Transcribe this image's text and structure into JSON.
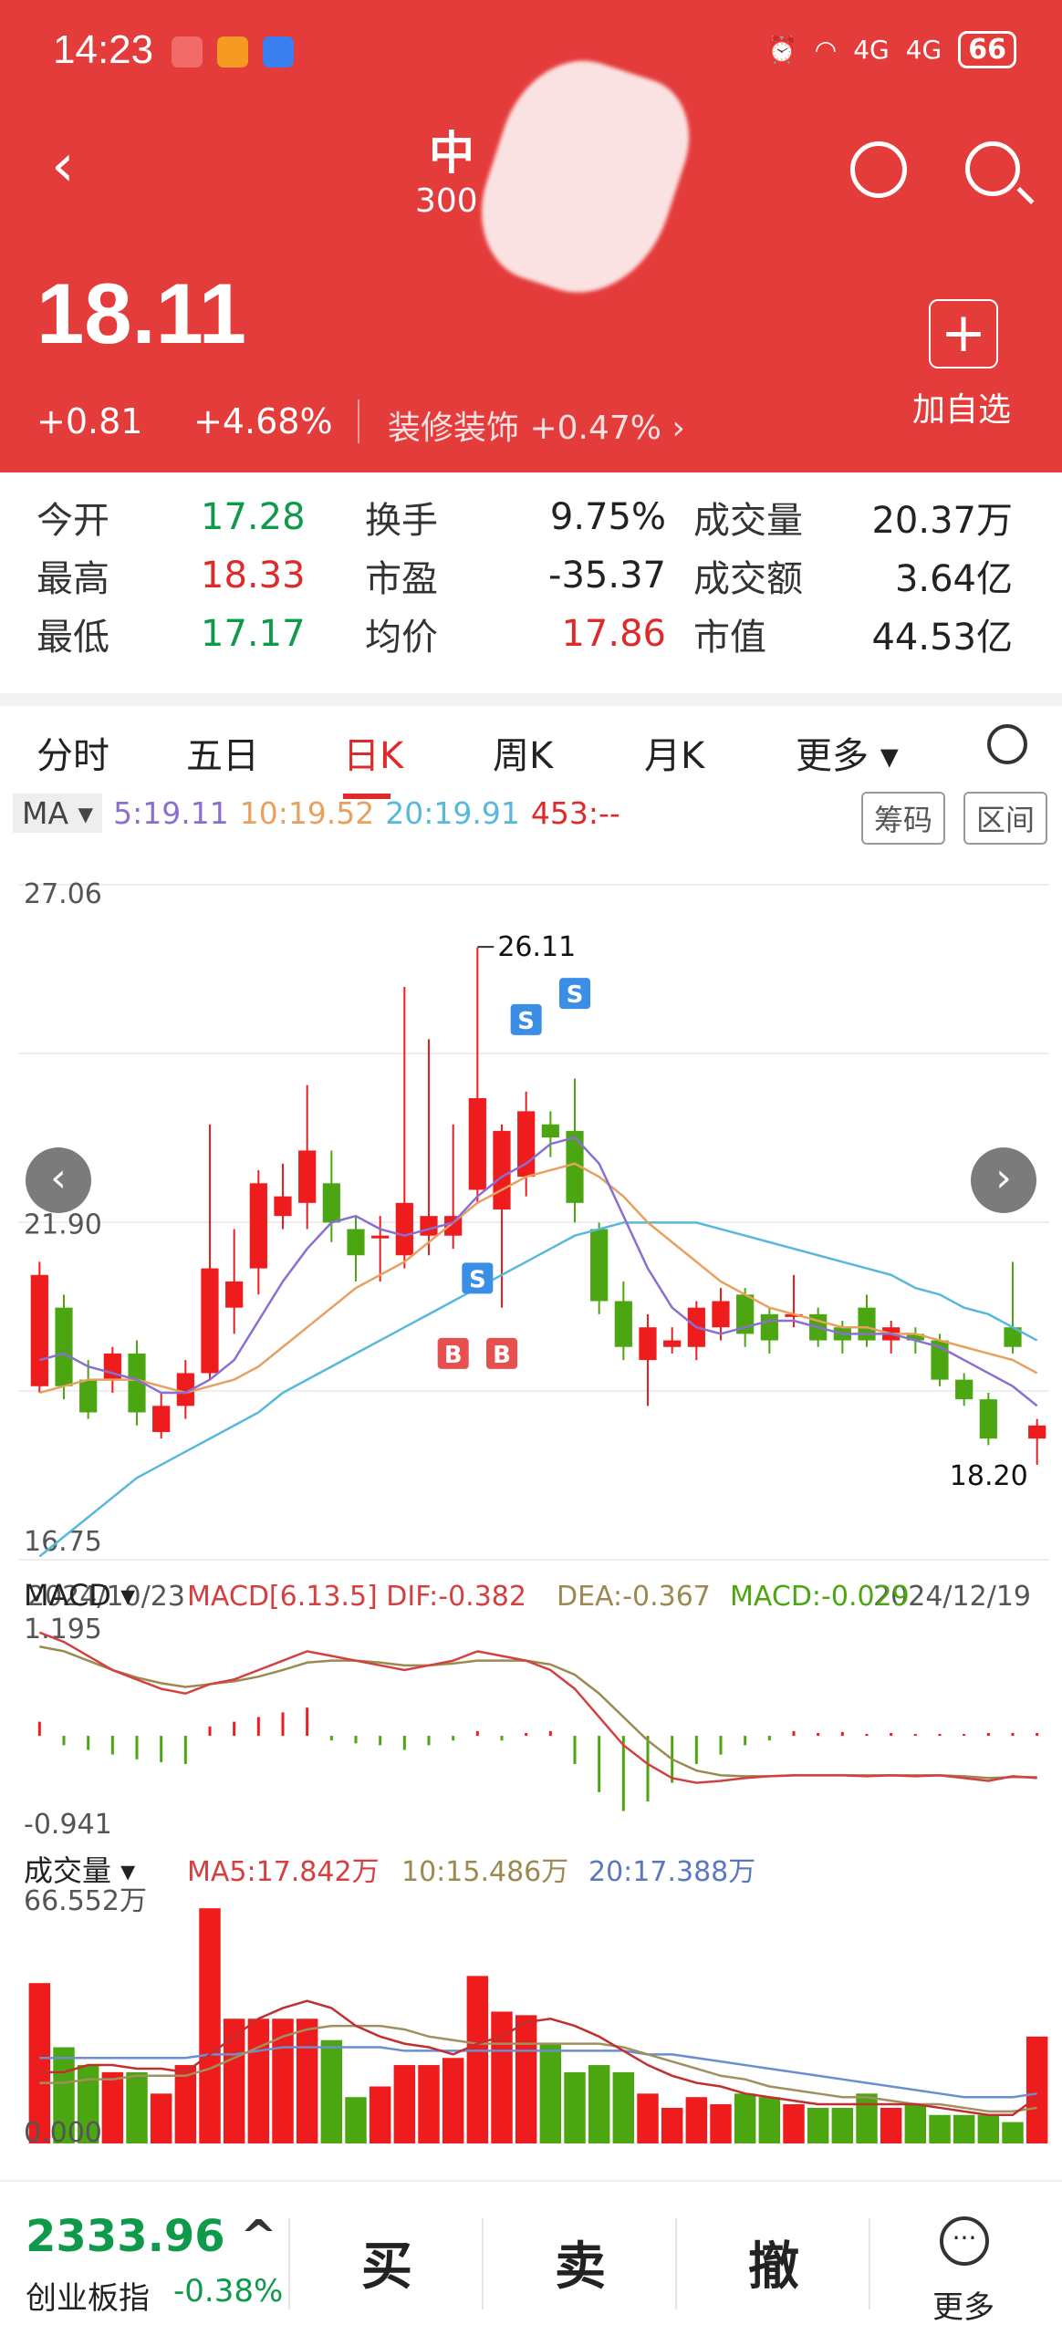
{
  "status": {
    "time": "14:23",
    "battery": "66",
    "net1": "4G",
    "net2": "4G"
  },
  "header": {
    "back": "‹",
    "name_visible": "中",
    "code_visible": "300",
    "price": "18.11",
    "change": "+0.81",
    "change_pct": "+4.68%",
    "sector": "装修装饰",
    "sector_pct": "+0.47%",
    "sector_arrow": "›",
    "add_label": "加自选",
    "add_icon": "+"
  },
  "stats": [
    {
      "k1": "今开",
      "v1": "17.28",
      "c1": "grn",
      "k2": "换手",
      "v2": "9.75%",
      "c2": "",
      "k3": "成交量",
      "v3": "20.37万"
    },
    {
      "k1": "最高",
      "v1": "18.33",
      "c1": "red",
      "k2": "市盈",
      "v2": "-35.37",
      "c2": "",
      "k3": "成交额",
      "v3": "3.64亿"
    },
    {
      "k1": "最低",
      "v1": "17.17",
      "c1": "grn",
      "k2": "均价",
      "v2": "17.86",
      "c2": "red",
      "k3": "市值",
      "v3": "44.53亿"
    }
  ],
  "tabs": [
    "分时",
    "五日",
    "日K",
    "周K",
    "月K",
    "更多 ▾"
  ],
  "active_tab": "日K",
  "ma_legend": {
    "label": "MA",
    "ma5": "5:19.11",
    "ma10": "10:19.52",
    "ma20": "20:19.91",
    "ma453": "453:--",
    "btn1": "筹码",
    "btn2": "区间"
  },
  "chart_data": {
    "type": "candlestick",
    "ylim": [
      16.75,
      27.06
    ],
    "ytick_labels": [
      "27.06",
      "21.90",
      "16.75"
    ],
    "date_start": "2024/10/23",
    "date_end": "2024/12/19",
    "high_label": "26.11",
    "low_label": "18.20",
    "markers": [
      "S",
      "S",
      "S",
      "B",
      "B"
    ],
    "candles": [
      {
        "o": 19.4,
        "c": 21.1,
        "h": 21.3,
        "l": 19.3
      },
      {
        "o": 20.6,
        "c": 19.4,
        "h": 20.8,
        "l": 19.2
      },
      {
        "o": 19.5,
        "c": 19.0,
        "h": 19.8,
        "l": 18.9
      },
      {
        "o": 19.5,
        "c": 19.9,
        "h": 20.0,
        "l": 19.3
      },
      {
        "o": 19.9,
        "c": 19.0,
        "h": 20.1,
        "l": 18.8
      },
      {
        "o": 18.7,
        "c": 19.1,
        "h": 19.3,
        "l": 18.6
      },
      {
        "o": 19.1,
        "c": 19.6,
        "h": 19.8,
        "l": 18.9
      },
      {
        "o": 19.6,
        "c": 21.2,
        "h": 23.4,
        "l": 19.5
      },
      {
        "o": 20.6,
        "c": 21.0,
        "h": 21.8,
        "l": 20.2
      },
      {
        "o": 21.2,
        "c": 22.5,
        "h": 22.7,
        "l": 20.8
      },
      {
        "o": 22.0,
        "c": 22.3,
        "h": 22.8,
        "l": 21.8
      },
      {
        "o": 22.2,
        "c": 23.0,
        "h": 24.0,
        "l": 21.8
      },
      {
        "o": 22.5,
        "c": 21.9,
        "h": 23.0,
        "l": 21.6
      },
      {
        "o": 21.8,
        "c": 21.4,
        "h": 22.0,
        "l": 21.0
      },
      {
        "o": 21.7,
        "c": 21.7,
        "h": 22.0,
        "l": 21.0
      },
      {
        "o": 21.4,
        "c": 22.2,
        "h": 25.5,
        "l": 21.2
      },
      {
        "o": 21.7,
        "c": 22.0,
        "h": 24.7,
        "l": 21.4
      },
      {
        "o": 21.7,
        "c": 22.0,
        "h": 23.4,
        "l": 21.5
      },
      {
        "o": 22.4,
        "c": 23.8,
        "h": 26.1,
        "l": 22.2
      },
      {
        "o": 22.1,
        "c": 23.3,
        "h": 23.4,
        "l": 20.6
      },
      {
        "o": 22.6,
        "c": 23.6,
        "h": 23.9,
        "l": 22.3
      },
      {
        "o": 23.4,
        "c": 23.2,
        "h": 23.6,
        "l": 22.9
      },
      {
        "o": 23.3,
        "c": 22.2,
        "h": 24.1,
        "l": 21.9
      },
      {
        "o": 21.8,
        "c": 20.7,
        "h": 21.9,
        "l": 20.5
      },
      {
        "o": 20.7,
        "c": 20.0,
        "h": 21.0,
        "l": 19.8
      },
      {
        "o": 19.8,
        "c": 20.3,
        "h": 20.5,
        "l": 19.1
      },
      {
        "o": 20.0,
        "c": 20.1,
        "h": 20.3,
        "l": 19.9
      },
      {
        "o": 20.0,
        "c": 20.6,
        "h": 20.7,
        "l": 19.8
      },
      {
        "o": 20.3,
        "c": 20.7,
        "h": 20.9,
        "l": 20.1
      },
      {
        "o": 20.8,
        "c": 20.2,
        "h": 20.9,
        "l": 20.0
      },
      {
        "o": 20.5,
        "c": 20.1,
        "h": 20.6,
        "l": 19.9
      },
      {
        "o": 20.5,
        "c": 20.5,
        "h": 21.1,
        "l": 20.3
      },
      {
        "o": 20.5,
        "c": 20.1,
        "h": 20.6,
        "l": 20.0
      },
      {
        "o": 20.3,
        "c": 20.1,
        "h": 20.4,
        "l": 19.9
      },
      {
        "o": 20.6,
        "c": 20.1,
        "h": 20.8,
        "l": 20.0
      },
      {
        "o": 20.1,
        "c": 20.3,
        "h": 20.4,
        "l": 19.9
      },
      {
        "o": 20.2,
        "c": 20.1,
        "h": 20.3,
        "l": 19.9
      },
      {
        "o": 20.1,
        "c": 19.5,
        "h": 20.2,
        "l": 19.4
      },
      {
        "o": 19.5,
        "c": 19.2,
        "h": 19.6,
        "l": 19.1
      },
      {
        "o": 19.2,
        "c": 18.6,
        "h": 19.3,
        "l": 18.5
      },
      {
        "o": 20.3,
        "c": 20.0,
        "h": 21.3,
        "l": 19.9
      },
      {
        "o": 18.6,
        "c": 18.8,
        "h": 18.9,
        "l": 18.2
      }
    ],
    "ma5": [
      19.8,
      19.9,
      19.7,
      19.6,
      19.5,
      19.3,
      19.3,
      19.5,
      19.8,
      20.4,
      21.0,
      21.5,
      21.9,
      22.0,
      21.8,
      21.7,
      21.8,
      21.9,
      22.3,
      22.6,
      22.8,
      23.1,
      23.2,
      22.8,
      22.0,
      21.2,
      20.6,
      20.3,
      20.2,
      20.3,
      20.4,
      20.4,
      20.3,
      20.2,
      20.2,
      20.2,
      20.1,
      20.0,
      19.8,
      19.6,
      19.4,
      19.1
    ],
    "ma10": [
      19.3,
      19.4,
      19.5,
      19.5,
      19.5,
      19.4,
      19.3,
      19.4,
      19.5,
      19.7,
      20.0,
      20.3,
      20.6,
      20.9,
      21.1,
      21.3,
      21.6,
      21.9,
      22.2,
      22.4,
      22.6,
      22.7,
      22.8,
      22.6,
      22.3,
      21.9,
      21.6,
      21.3,
      21.0,
      20.8,
      20.6,
      20.5,
      20.4,
      20.3,
      20.3,
      20.2,
      20.2,
      20.1,
      20.0,
      19.9,
      19.8,
      19.6
    ],
    "ma20": [
      16.8,
      17.1,
      17.4,
      17.7,
      18.0,
      18.2,
      18.4,
      18.6,
      18.8,
      19.0,
      19.3,
      19.5,
      19.7,
      19.9,
      20.1,
      20.3,
      20.5,
      20.7,
      20.9,
      21.1,
      21.3,
      21.5,
      21.7,
      21.8,
      21.9,
      21.9,
      21.9,
      21.9,
      21.8,
      21.7,
      21.6,
      21.5,
      21.4,
      21.3,
      21.2,
      21.1,
      20.9,
      20.8,
      20.6,
      20.5,
      20.3,
      20.1
    ],
    "macd_header": {
      "label": "MACD",
      "params": "MACD[6.13.5]",
      "dif": "DIF:-0.382",
      "dea": "DEA:-0.367",
      "macd": "MACD:-0.029"
    },
    "macd_range": [
      "1.195",
      "-0.941"
    ],
    "macd_ylim": [
      -0.941,
      1.195
    ],
    "macd_hist": [
      0.15,
      -0.1,
      -0.15,
      -0.2,
      -0.25,
      -0.28,
      -0.3,
      0.1,
      0.15,
      0.2,
      0.25,
      0.3,
      -0.05,
      -0.08,
      -0.1,
      -0.15,
      -0.1,
      -0.05,
      0.05,
      -0.05,
      0.03,
      0.05,
      -0.3,
      -0.6,
      -0.8,
      -0.7,
      -0.5,
      -0.3,
      -0.2,
      -0.1,
      -0.05,
      0.05,
      0.03,
      0.04,
      0.02,
      0.03,
      0.02,
      0.02,
      0.02,
      0.03,
      0.03,
      0.03
    ],
    "dif": [
      1.1,
      1.0,
      0.85,
      0.7,
      0.6,
      0.5,
      0.45,
      0.55,
      0.6,
      0.7,
      0.8,
      0.9,
      0.85,
      0.8,
      0.75,
      0.7,
      0.75,
      0.8,
      0.9,
      0.85,
      0.8,
      0.7,
      0.5,
      0.2,
      -0.1,
      -0.3,
      -0.45,
      -0.5,
      -0.48,
      -0.45,
      -0.43,
      -0.42,
      -0.42,
      -0.42,
      -0.43,
      -0.42,
      -0.43,
      -0.42,
      -0.45,
      -0.48,
      -0.43,
      -0.45
    ],
    "dea": [
      0.95,
      0.9,
      0.8,
      0.7,
      0.62,
      0.56,
      0.52,
      0.55,
      0.58,
      0.63,
      0.7,
      0.78,
      0.8,
      0.8,
      0.78,
      0.75,
      0.75,
      0.77,
      0.8,
      0.8,
      0.8,
      0.76,
      0.65,
      0.45,
      0.2,
      -0.05,
      -0.25,
      -0.37,
      -0.42,
      -0.43,
      -0.43,
      -0.42,
      -0.42,
      -0.42,
      -0.42,
      -0.42,
      -0.42,
      -0.42,
      -0.43,
      -0.45,
      -0.44,
      -0.44
    ],
    "vol_header": {
      "label": "成交量",
      "ma5": "MA5:17.842万",
      "ma10": "10:15.486万",
      "ma20": "20:17.388万"
    },
    "vol_range": [
      "66.552万",
      "0.000"
    ],
    "vol_ylim": [
      0,
      66.552
    ],
    "volume": [
      45,
      27,
      22,
      20,
      20,
      14,
      22,
      66,
      35,
      35,
      35,
      35,
      29,
      13,
      16,
      22,
      22,
      24,
      47,
      37,
      36,
      28,
      20,
      22,
      20,
      14,
      10,
      13,
      11,
      14,
      13,
      11,
      10,
      10,
      14,
      10,
      11,
      8,
      8,
      8,
      6,
      30
    ],
    "vol_ma5": [
      20,
      20,
      22,
      22,
      21,
      21,
      20,
      25,
      30,
      35,
      38,
      40,
      38,
      33,
      30,
      28,
      27,
      25,
      28,
      30,
      34,
      35,
      33,
      30,
      26,
      22,
      19,
      17,
      16,
      14,
      13,
      12,
      11,
      11,
      11,
      11,
      11,
      10,
      9,
      8,
      8,
      13
    ],
    "vol_ma10": [
      17,
      17,
      18,
      18,
      19,
      19,
      19,
      21,
      24,
      27,
      30,
      32,
      33,
      33,
      33,
      32,
      30,
      29,
      28,
      28,
      28,
      28,
      28,
      28,
      27,
      25,
      23,
      21,
      19,
      18,
      16,
      15,
      14,
      13,
      13,
      12,
      11,
      11,
      10,
      9,
      9,
      10
    ],
    "vol_ma20": [
      24,
      24,
      24,
      24,
      24,
      24,
      24,
      25,
      25,
      26,
      27,
      27,
      27,
      27,
      27,
      26,
      26,
      26,
      26,
      26,
      26,
      26,
      26,
      26,
      26,
      25,
      25,
      24,
      23,
      22,
      21,
      20,
      19,
      18,
      17,
      16,
      15,
      14,
      13,
      13,
      13,
      14
    ]
  },
  "colors": {
    "up": "#ee1c1c",
    "down": "#4ca612",
    "ma5": "#8b6fd0",
    "ma10": "#e8a060",
    "ma20": "#57b8dc",
    "dif": "#d44040",
    "dea": "#9a8a50"
  },
  "bottom": {
    "index_value": "2333.96",
    "index_arrow": "^",
    "index_name": "创业板指",
    "index_pct": "-0.38%",
    "buy": "买",
    "sell": "卖",
    "cancel": "撤",
    "more": "更多",
    "more_icon": "···"
  }
}
